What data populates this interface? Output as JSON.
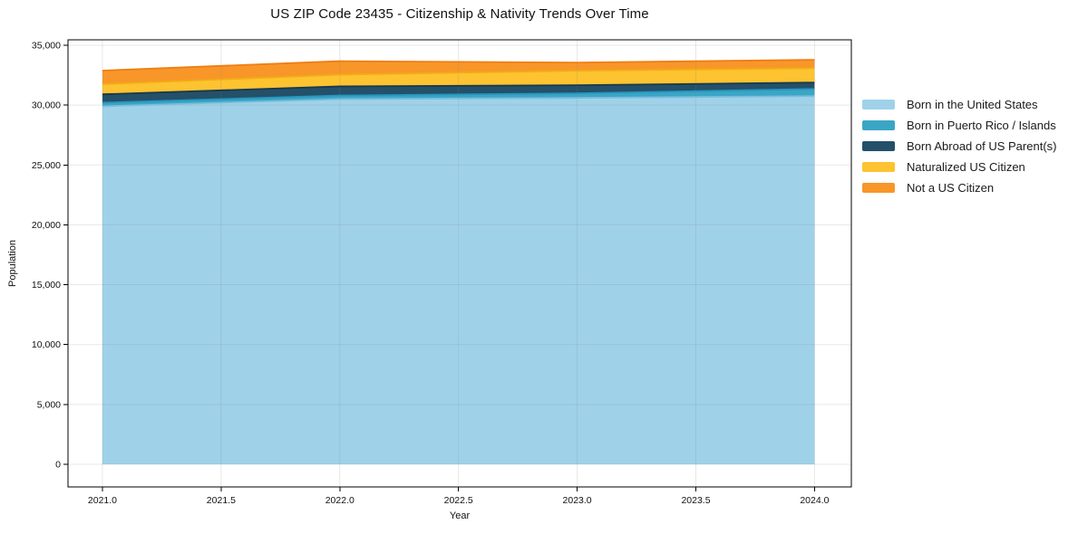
{
  "figure": {
    "background": "#ffffff"
  },
  "chart_data": {
    "type": "area",
    "stacked": true,
    "title": "US ZIP Code 23435 - Citizenship & Nativity Trends Over Time",
    "xlabel": "Year",
    "ylabel": "Population",
    "x": [
      2021,
      2022,
      2023,
      2024
    ],
    "series": [
      {
        "name": "Born in the United States",
        "values": [
          29900,
          30500,
          30600,
          30750
        ],
        "color": "#9FD2E9",
        "line_color": "#79BEDC"
      },
      {
        "name": "Born in Puerto Rico / Islands",
        "values": [
          300,
          300,
          380,
          600
        ],
        "color": "#3BA5C6",
        "line_color": "#2596BD"
      },
      {
        "name": "Born Abroad of US Parent(s)",
        "values": [
          700,
          760,
          680,
          530
        ],
        "color": "#24506A",
        "line_color": "#18394E"
      },
      {
        "name": "Naturalized US Citizen",
        "values": [
          850,
          980,
          1210,
          1210
        ],
        "color": "#FDC330",
        "line_color": "#F2AC14"
      },
      {
        "name": "Not a US Citizen",
        "values": [
          1130,
          1130,
          680,
          690
        ],
        "color": "#F8962A",
        "line_color": "#EF7E11"
      }
    ],
    "xlim": [
      2020.855,
      2024.155
    ],
    "ylim": [
      -1890,
      35450
    ],
    "xticks": {
      "values": [
        2021.0,
        2021.5,
        2022.0,
        2022.5,
        2023.0,
        2023.5,
        2024.0
      ],
      "labels": [
        "2021.0",
        "2021.5",
        "2022.0",
        "2022.5",
        "2023.0",
        "2023.5",
        "2024.0"
      ]
    },
    "yticks": {
      "values": [
        0,
        5000,
        10000,
        15000,
        20000,
        25000,
        30000,
        35000
      ],
      "labels": [
        "0",
        "5,000",
        "10,000",
        "15,000",
        "20,000",
        "25,000",
        "30,000",
        "35,000"
      ]
    },
    "grid": true,
    "legend_position": "right",
    "spine_color": "#000000",
    "grid_color": "#828282",
    "tick_label_color": "#111111"
  }
}
